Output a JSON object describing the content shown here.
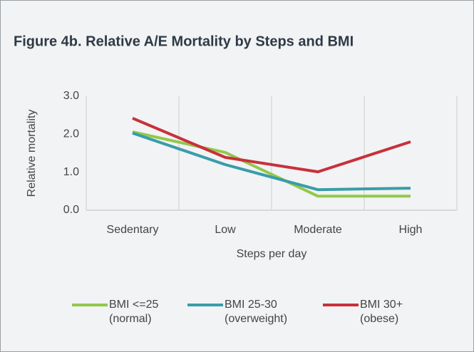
{
  "chart_data": {
    "type": "line",
    "title": "Figure 4b. Relative A/E Mortality by Steps and BMI",
    "x_label": "Steps per day",
    "y_label": "Relative mortality",
    "categories": [
      "Sedentary",
      "Low",
      "Moderate",
      "High"
    ],
    "series": [
      {
        "name": "BMI <=25 (normal)",
        "color": "#92c94a",
        "values": [
          2.06,
          1.52,
          0.37,
          0.37
        ]
      },
      {
        "name": "BMI 25-30 (overweight)",
        "color": "#3a9ca9",
        "values": [
          2.03,
          1.2,
          0.54,
          0.58
        ]
      },
      {
        "name": "BMI 30+ (obese)",
        "color": "#c8313a",
        "values": [
          2.42,
          1.39,
          1.01,
          1.8
        ]
      }
    ],
    "ylim": [
      0,
      3
    ],
    "yticks": [
      {
        "value": 0,
        "label": "0.0"
      },
      {
        "value": 1,
        "label": "1.0"
      },
      {
        "value": 2,
        "label": "2.0"
      },
      {
        "value": 3,
        "label": "3.0"
      }
    ],
    "legend": "bottom"
  }
}
